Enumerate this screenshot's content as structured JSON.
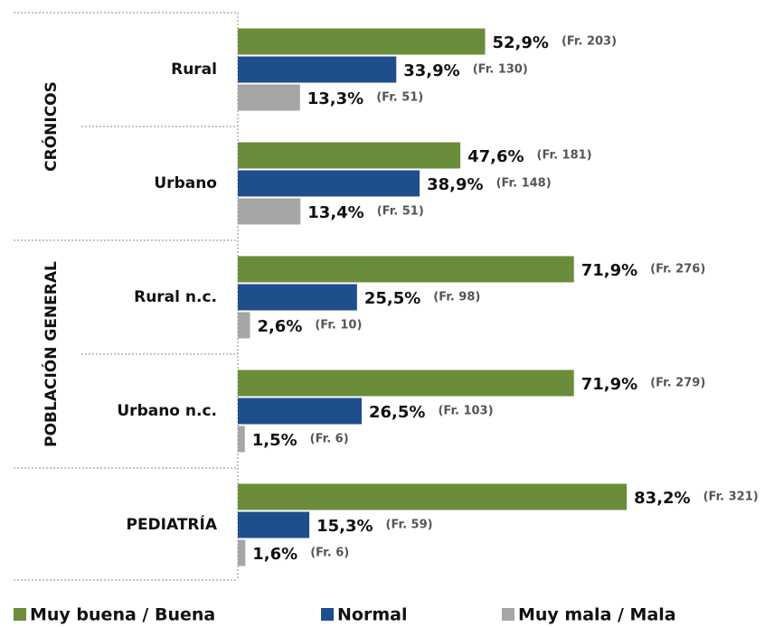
{
  "chart_data": {
    "type": "bar",
    "orientation": "horizontal",
    "groups": [
      {
        "name": "CRÓNICOS",
        "categories": [
          0,
          1
        ]
      },
      {
        "name": "POBLACIÓN GENERAL",
        "categories": [
          2,
          3
        ]
      }
    ],
    "categories": [
      "Rural",
      "Urbano",
      "Rural n.c.",
      "Urbano n.c.",
      "PEDIATRÍA"
    ],
    "xlim": [
      0,
      100
    ],
    "series": [
      {
        "name": "Muy buena / Buena",
        "color": "#6b8c3a",
        "values": [
          52.9,
          47.6,
          71.9,
          71.9,
          83.2
        ],
        "value_labels": [
          "52,9%",
          "47,6%",
          "71,9%",
          "71,9%",
          "83,2%"
        ],
        "freq_labels": [
          "(Fr. 203)",
          "(Fr. 181)",
          "(Fr. 276)",
          "(Fr. 279)",
          "(Fr. 321)"
        ]
      },
      {
        "name": "Normal",
        "color": "#1f4e8c",
        "values": [
          33.9,
          38.9,
          25.5,
          26.5,
          15.3
        ],
        "value_labels": [
          "33,9%",
          "38,9%",
          "25,5%",
          "26,5%",
          "15,3%"
        ],
        "freq_labels": [
          "(Fr. 130)",
          "(Fr. 148)",
          "(Fr. 98)",
          "(Fr. 103)",
          "(Fr. 59)"
        ]
      },
      {
        "name": "Muy mala / Mala",
        "color": "#a6a6a6",
        "values": [
          13.3,
          13.4,
          2.6,
          1.5,
          1.6
        ],
        "value_labels": [
          "13,3%",
          "13,4%",
          "2,6%",
          "1,5%",
          "1,6%"
        ],
        "freq_labels": [
          "(Fr. 51)",
          "(Fr. 51)",
          "(Fr. 10)",
          "(Fr. 6)",
          "(Fr. 6)"
        ]
      }
    ]
  }
}
